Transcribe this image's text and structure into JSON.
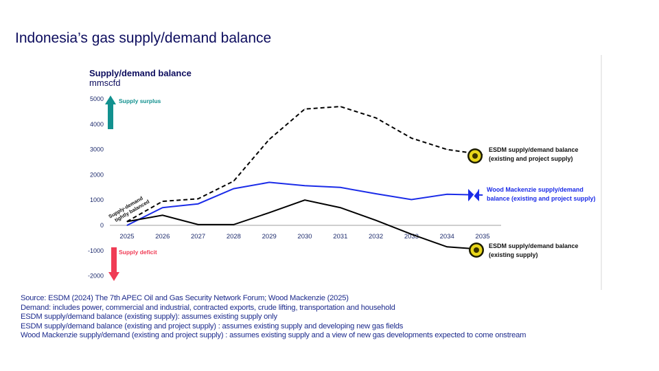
{
  "title": "Indonesia’s gas supply/demand balance",
  "chart_data": {
    "type": "line",
    "title": "Supply/demand balance",
    "ylabel": "mmscfd",
    "xlabel": "",
    "x": [
      2025,
      2026,
      2027,
      2028,
      2029,
      2030,
      2031,
      2032,
      2033,
      2034,
      2035
    ],
    "yticks": [
      5000,
      4000,
      3000,
      2000,
      1000,
      0,
      -1000,
      -2000
    ],
    "ylim": [
      -2000,
      5000
    ],
    "grid": false,
    "series": [
      {
        "name": "ESDM supply/demand balance (existing and project supply)",
        "style": "dashed",
        "color": "#000000",
        "icon": "esdm-seal-icon",
        "values": [
          150,
          950,
          1050,
          1750,
          3400,
          4600,
          4700,
          4250,
          3450,
          3000,
          2800
        ]
      },
      {
        "name": "Wood Mackenzie supply/demand balance (existing and project supply)",
        "style": "solid",
        "color": "#1a2be8",
        "icon": "wood-mackenzie-logo-icon",
        "values": [
          0,
          700,
          850,
          1450,
          1700,
          1570,
          1500,
          1250,
          1020,
          1230,
          1200
        ]
      },
      {
        "name": "ESDM supply/demand balance (existing supply)",
        "style": "solid",
        "color": "#000000",
        "icon": "esdm-seal-icon",
        "values": [
          150,
          400,
          30,
          30,
          500,
          1000,
          700,
          200,
          -350,
          -850,
          -950
        ]
      }
    ],
    "annotations": {
      "surplus": "Supply surplus",
      "deficit": "Supply deficit",
      "balanced": [
        "Supply-demand",
        "tightly balanced"
      ]
    },
    "colors": {
      "surplus": "#12918f",
      "deficit": "#f03c55"
    }
  },
  "labels": {
    "esdm_project": [
      "ESDM supply/demand balance",
      "(existing and project supply)"
    ],
    "woodmac": [
      "Wood Mackenzie supply/demand",
      "balance (existing and project supply)"
    ],
    "esdm_existing": [
      "ESDM supply/demand balance",
      "(existing supply)"
    ]
  },
  "notes": [
    "Source: ESDM (2024) The 7th APEC Oil and Gas Security Network Forum; Wood Mackenzie (2025)",
    "Demand: includes power, commercial and industrial, contracted exports, crude lifting, transportation and household",
    "ESDM  supply/demand balance (existing supply): assumes existing supply only",
    "ESDM supply/demand balance (existing and project supply) : assumes existing supply and developing new gas fields",
    "Wood Mackenzie supply/demand (existing and project supply) : assumes existing supply and a view of new gas developments expected to come onstream"
  ]
}
